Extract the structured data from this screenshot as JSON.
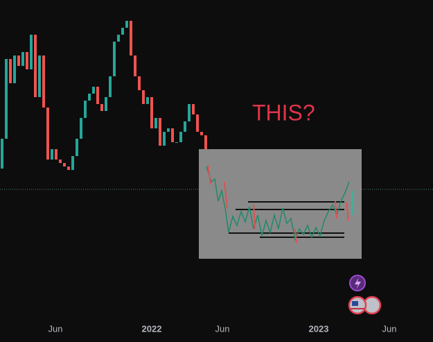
{
  "chart_data": {
    "type": "candlestick",
    "annotation": "THIS?",
    "x_axis_labels": [
      "Jun",
      "2022",
      "Jun",
      "2023",
      "Jun"
    ],
    "up_color": "#26a69a",
    "down_color": "#ef5350",
    "ylim": [
      0,
      493
    ],
    "open": [
      250,
      293,
      408,
      373,
      413,
      398,
      418,
      393,
      443,
      353,
      413,
      338,
      263,
      278,
      263,
      258,
      253,
      248,
      268,
      293,
      323,
      348,
      358,
      368,
      343,
      333,
      353,
      383,
      433,
      443,
      453,
      463,
      413,
      383,
      363,
      343,
      353,
      308,
      323,
      283,
      303,
      308,
      288,
      288,
      303,
      318,
      343,
      328,
      303,
      298
    ],
    "close": [
      293,
      408,
      373,
      413,
      398,
      418,
      393,
      443,
      353,
      413,
      338,
      263,
      278,
      263,
      258,
      253,
      248,
      268,
      293,
      323,
      348,
      358,
      368,
      343,
      333,
      353,
      383,
      433,
      443,
      453,
      463,
      413,
      383,
      363,
      343,
      353,
      308,
      323,
      283,
      303,
      308,
      288,
      288,
      303,
      318,
      343,
      328,
      303,
      298,
      278
    ]
  }
}
